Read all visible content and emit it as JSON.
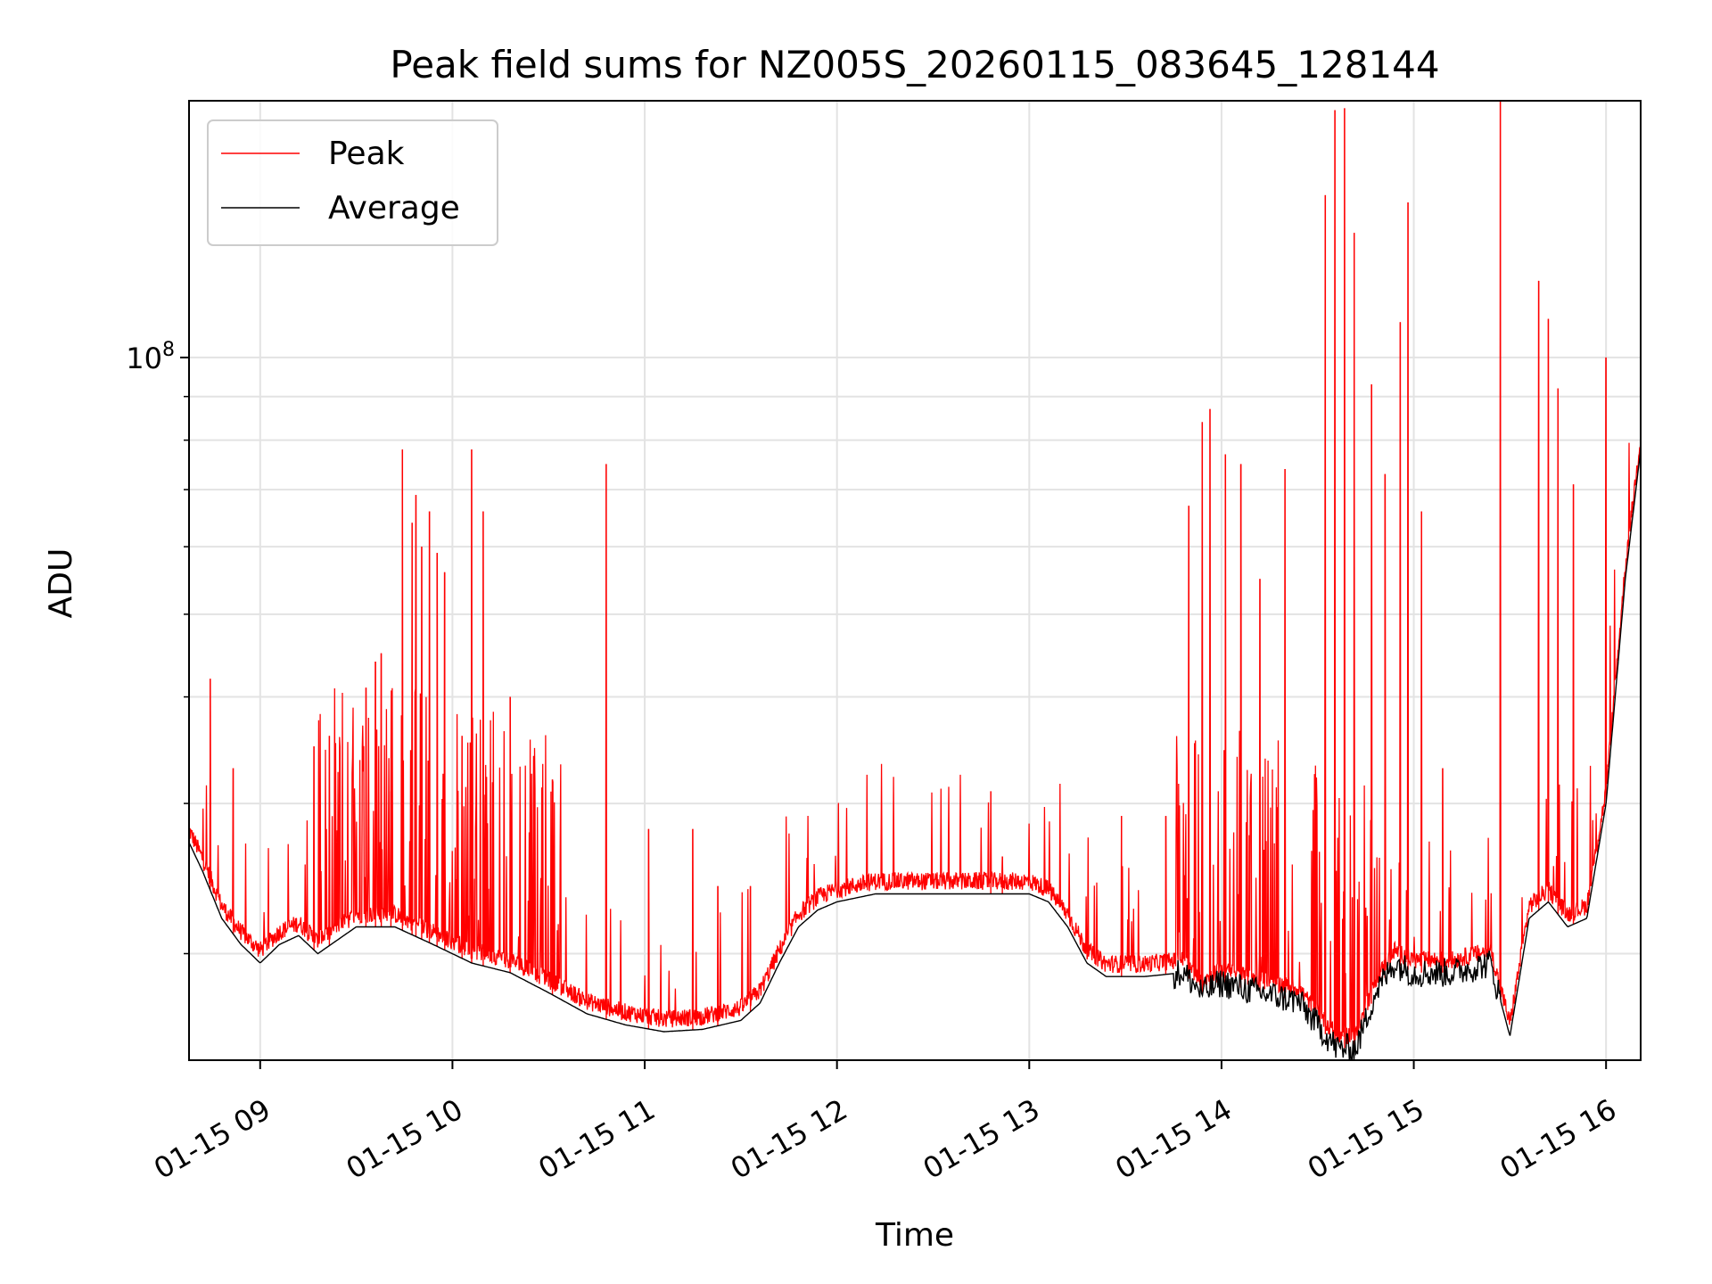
{
  "chart_data": {
    "type": "line",
    "title": "Peak field sums for NZ005S_20260115_083645_128144",
    "xlabel": "Time",
    "ylabel": "ADU",
    "yscale": "log",
    "xlim": [
      8.63,
      16.18
    ],
    "ylim": [
      15000000,
      200000000
    ],
    "grid": true,
    "legend_position": "top-left",
    "x_tick_values": [
      9,
      10,
      11,
      12,
      13,
      14,
      15,
      16
    ],
    "x_tick_labels": [
      "01-15 09",
      "01-15 10",
      "01-15 11",
      "01-15 12",
      "01-15 13",
      "01-15 14",
      "01-15 15",
      "01-15 16"
    ],
    "y_major_ticks": [
      {
        "value": 100000000,
        "base": "10",
        "exp": "8"
      }
    ],
    "y_minor_ticks": [
      20000000,
      30000000,
      40000000,
      50000000,
      60000000,
      70000000,
      80000000,
      90000000
    ],
    "series": [
      {
        "name": "Average",
        "color": "#000000",
        "x": [
          8.63,
          8.7,
          8.8,
          8.9,
          9.0,
          9.1,
          9.2,
          9.3,
          9.5,
          9.7,
          9.9,
          10.1,
          10.3,
          10.5,
          10.7,
          10.9,
          11.1,
          11.3,
          11.5,
          11.6,
          11.7,
          11.8,
          11.9,
          12.0,
          12.2,
          12.4,
          12.6,
          12.8,
          13.0,
          13.1,
          13.2,
          13.3,
          13.4,
          13.6,
          13.8,
          13.9,
          14.0,
          14.2,
          14.4,
          14.5,
          14.6,
          14.7,
          14.8,
          14.9,
          15.0,
          15.2,
          15.4,
          15.5,
          15.6,
          15.7,
          15.8,
          15.9,
          16.0,
          16.1,
          16.18
        ],
        "y": [
          27000000,
          25000000,
          22000000,
          20500000,
          19500000,
          20500000,
          21000000,
          20000000,
          21500000,
          21500000,
          20500000,
          19500000,
          19000000,
          18000000,
          17000000,
          16500000,
          16200000,
          16300000,
          16700000,
          17500000,
          19500000,
          21500000,
          22500000,
          23000000,
          23500000,
          23500000,
          23500000,
          23500000,
          23500000,
          23000000,
          21500000,
          19500000,
          18800000,
          18800000,
          19000000,
          18000000,
          18500000,
          18000000,
          17600000,
          16500000,
          15500000,
          15500000,
          18000000,
          19500000,
          19000000,
          19000000,
          19500000,
          16000000,
          22000000,
          23000000,
          21500000,
          22000000,
          30000000,
          55000000,
          78000000
        ]
      },
      {
        "name": "Peak",
        "color": "#ff0000",
        "spikes": [
          {
            "x": 8.74,
            "y": 42000000
          },
          {
            "x": 8.86,
            "y": 33000000
          },
          {
            "x": 9.28,
            "y": 35000000
          },
          {
            "x": 9.36,
            "y": 36000000
          },
          {
            "x": 9.55,
            "y": 41000000
          },
          {
            "x": 9.6,
            "y": 44000000
          },
          {
            "x": 9.63,
            "y": 45000000
          },
          {
            "x": 9.68,
            "y": 31000000
          },
          {
            "x": 9.74,
            "y": 78000000
          },
          {
            "x": 9.79,
            "y": 64000000
          },
          {
            "x": 9.81,
            "y": 69000000
          },
          {
            "x": 9.84,
            "y": 60000000
          },
          {
            "x": 9.88,
            "y": 66000000
          },
          {
            "x": 9.92,
            "y": 59000000
          },
          {
            "x": 9.96,
            "y": 56000000
          },
          {
            "x": 10.05,
            "y": 36000000
          },
          {
            "x": 10.1,
            "y": 78000000
          },
          {
            "x": 10.16,
            "y": 66000000
          },
          {
            "x": 10.3,
            "y": 40000000
          },
          {
            "x": 10.52,
            "y": 32000000
          },
          {
            "x": 10.8,
            "y": 75000000
          },
          {
            "x": 11.02,
            "y": 28000000
          },
          {
            "x": 11.25,
            "y": 28000000
          },
          {
            "x": 11.38,
            "y": 24000000
          },
          {
            "x": 11.55,
            "y": 24000000
          },
          {
            "x": 12.8,
            "y": 31000000
          },
          {
            "x": 12.86,
            "y": 26000000
          },
          {
            "x": 13.48,
            "y": 29000000
          },
          {
            "x": 13.71,
            "y": 29000000
          },
          {
            "x": 13.83,
            "y": 67000000
          },
          {
            "x": 13.9,
            "y": 84000000
          },
          {
            "x": 13.94,
            "y": 87000000
          },
          {
            "x": 14.02,
            "y": 77000000
          },
          {
            "x": 14.1,
            "y": 75000000
          },
          {
            "x": 14.2,
            "y": 55000000
          },
          {
            "x": 14.33,
            "y": 74000000
          },
          {
            "x": 14.54,
            "y": 155000000
          },
          {
            "x": 14.59,
            "y": 195000000
          },
          {
            "x": 14.64,
            "y": 196000000
          },
          {
            "x": 14.69,
            "y": 140000000
          },
          {
            "x": 14.78,
            "y": 93000000
          },
          {
            "x": 14.85,
            "y": 73000000
          },
          {
            "x": 14.93,
            "y": 110000000
          },
          {
            "x": 14.97,
            "y": 152000000
          },
          {
            "x": 15.04,
            "y": 66000000
          },
          {
            "x": 15.15,
            "y": 33000000
          },
          {
            "x": 15.45,
            "y": 200000000
          },
          {
            "x": 15.65,
            "y": 123000000
          },
          {
            "x": 15.7,
            "y": 111000000
          },
          {
            "x": 15.75,
            "y": 92000000
          },
          {
            "x": 15.83,
            "y": 71000000
          },
          {
            "x": 16.0,
            "y": 100000000
          }
        ]
      }
    ],
    "legend": [
      {
        "label": "Peak",
        "color": "#ff0000"
      },
      {
        "label": "Average",
        "color": "#000000"
      }
    ]
  }
}
